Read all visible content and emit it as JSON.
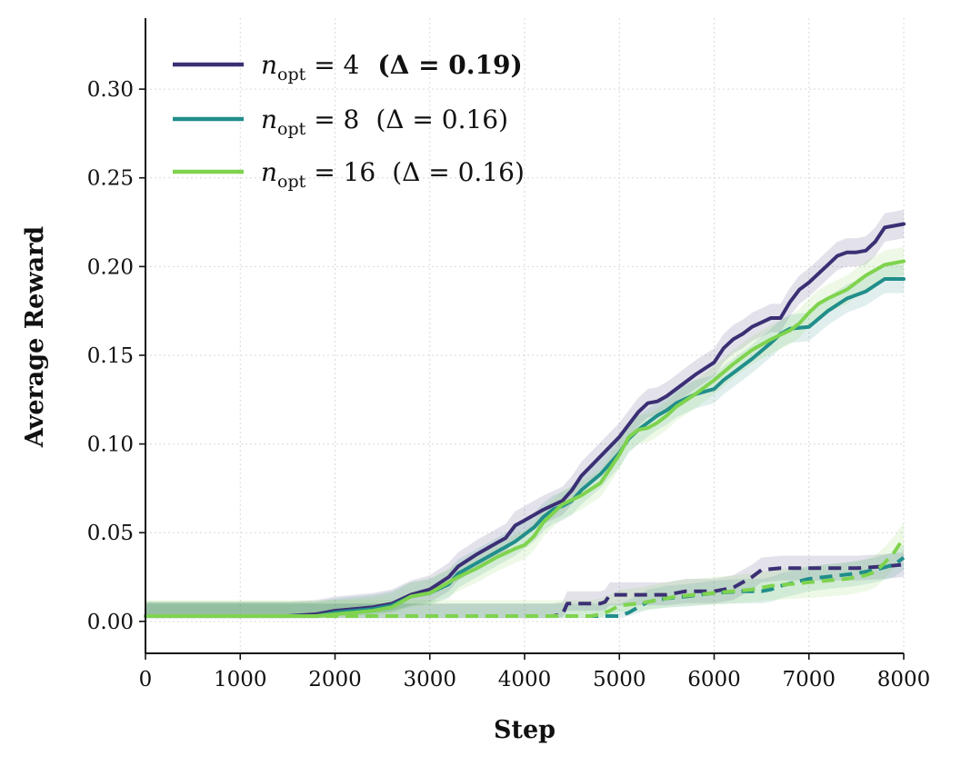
{
  "chart_data": {
    "type": "line",
    "title": "",
    "xlabel": "Step",
    "ylabel": "Average Reward",
    "xlim": [
      0,
      8000
    ],
    "ylim": [
      -0.018,
      0.34
    ],
    "x_ticks": [
      0,
      1000,
      2000,
      3000,
      4000,
      5000,
      6000,
      7000,
      8000
    ],
    "x_tick_labels": [
      "0",
      "1000",
      "2000",
      "3000",
      "4000",
      "5000",
      "6000",
      "7000",
      "8000"
    ],
    "y_ticks": [
      0.0,
      0.05,
      0.1,
      0.15,
      0.2,
      0.25,
      0.3
    ],
    "y_tick_labels": [
      "0.00",
      "0.05",
      "0.10",
      "0.15",
      "0.20",
      "0.25",
      "0.30"
    ],
    "grid": true,
    "legend_position": "top-left",
    "series": [
      {
        "name": "n_opt = 4 (Δ = 0.19)",
        "legend": {
          "var": "n",
          "sub": "opt",
          "eq": " = 4",
          "delta": "(Δ = 0.19)",
          "delta_bold": true
        },
        "color": "#3b2f74",
        "solid": {
          "x": [
            0,
            500,
            1000,
            1500,
            1800,
            2000,
            2200,
            2400,
            2600,
            2800,
            3000,
            3200,
            3300,
            3500,
            3700,
            3800,
            3900,
            4000,
            4200,
            4400,
            4500,
            4600,
            4800,
            5000,
            5100,
            5200,
            5300,
            5400,
            5500,
            5600,
            5800,
            6000,
            6100,
            6200,
            6300,
            6400,
            6600,
            6700,
            6800,
            6900,
            7000,
            7200,
            7300,
            7400,
            7500,
            7600,
            7700,
            7800,
            8000
          ],
          "y": [
            0.003,
            0.003,
            0.003,
            0.003,
            0.004,
            0.006,
            0.007,
            0.008,
            0.01,
            0.015,
            0.018,
            0.025,
            0.031,
            0.038,
            0.044,
            0.047,
            0.054,
            0.057,
            0.063,
            0.068,
            0.074,
            0.082,
            0.093,
            0.104,
            0.111,
            0.118,
            0.123,
            0.124,
            0.127,
            0.131,
            0.139,
            0.146,
            0.154,
            0.159,
            0.162,
            0.166,
            0.171,
            0.171,
            0.18,
            0.187,
            0.191,
            0.201,
            0.206,
            0.208,
            0.208,
            0.209,
            0.214,
            0.222,
            0.224
          ],
          "band": 0.008
        },
        "dashed": {
          "x": [
            0,
            1000,
            2000,
            3000,
            4000,
            4300,
            4400,
            4450,
            4500,
            4800,
            4850,
            4900,
            5000,
            5300,
            5500,
            5700,
            6000,
            6200,
            6300,
            6400,
            6500,
            6700,
            7000,
            7500,
            7800,
            8000
          ],
          "y": [
            0.003,
            0.003,
            0.003,
            0.003,
            0.003,
            0.003,
            0.004,
            0.01,
            0.01,
            0.01,
            0.011,
            0.015,
            0.015,
            0.015,
            0.015,
            0.017,
            0.017,
            0.019,
            0.022,
            0.025,
            0.029,
            0.03,
            0.03,
            0.03,
            0.031,
            0.032
          ],
          "band": 0.007
        }
      },
      {
        "name": "n_opt = 8 (Δ = 0.16)",
        "legend": {
          "var": "n",
          "sub": "opt",
          "eq": " = 8",
          "delta": "(Δ = 0.16)",
          "delta_bold": false
        },
        "color": "#218e8a",
        "solid": {
          "x": [
            0,
            500,
            1000,
            1500,
            1800,
            2000,
            2200,
            2400,
            2600,
            2800,
            3000,
            3200,
            3300,
            3500,
            3700,
            3900,
            4000,
            4100,
            4200,
            4300,
            4400,
            4500,
            4600,
            4800,
            5000,
            5100,
            5200,
            5300,
            5400,
            5500,
            5600,
            5800,
            6000,
            6100,
            6200,
            6400,
            6600,
            6700,
            6800,
            7000,
            7200,
            7400,
            7600,
            7800,
            8000
          ],
          "y": [
            0.003,
            0.003,
            0.003,
            0.003,
            0.003,
            0.005,
            0.006,
            0.007,
            0.009,
            0.014,
            0.016,
            0.021,
            0.027,
            0.033,
            0.039,
            0.045,
            0.049,
            0.053,
            0.059,
            0.063,
            0.065,
            0.068,
            0.074,
            0.083,
            0.095,
            0.103,
            0.108,
            0.112,
            0.116,
            0.119,
            0.123,
            0.128,
            0.131,
            0.136,
            0.14,
            0.148,
            0.157,
            0.162,
            0.165,
            0.166,
            0.175,
            0.182,
            0.186,
            0.193,
            0.193
          ],
          "band": 0.008
        },
        "dashed": {
          "x": [
            0,
            1000,
            2000,
            3000,
            4000,
            4900,
            5000,
            5100,
            5200,
            5300,
            5500,
            5700,
            6000,
            6300,
            6500,
            6600,
            6700,
            7000,
            7500,
            7700,
            7900,
            8000
          ],
          "y": [
            0.003,
            0.003,
            0.003,
            0.003,
            0.003,
            0.003,
            0.003,
            0.005,
            0.008,
            0.011,
            0.013,
            0.014,
            0.016,
            0.017,
            0.017,
            0.018,
            0.02,
            0.024,
            0.027,
            0.029,
            0.032,
            0.036
          ],
          "band": 0.007
        }
      },
      {
        "name": "n_opt = 16 (Δ = 0.16)",
        "legend": {
          "var": "n",
          "sub": "opt",
          "eq": " = 16",
          "delta": "(Δ = 0.16)",
          "delta_bold": false
        },
        "color": "#7fd34e",
        "solid": {
          "x": [
            0,
            500,
            1000,
            1500,
            1800,
            2000,
            2200,
            2400,
            2600,
            2800,
            3000,
            3200,
            3300,
            3500,
            3700,
            3900,
            4000,
            4100,
            4200,
            4400,
            4600,
            4800,
            5000,
            5100,
            5200,
            5300,
            5400,
            5500,
            5600,
            5800,
            6000,
            6200,
            6400,
            6600,
            6800,
            6900,
            7000,
            7100,
            7200,
            7400,
            7600,
            7800,
            8000
          ],
          "y": [
            0.003,
            0.003,
            0.003,
            0.003,
            0.003,
            0.004,
            0.005,
            0.006,
            0.008,
            0.014,
            0.016,
            0.022,
            0.025,
            0.03,
            0.036,
            0.041,
            0.043,
            0.048,
            0.056,
            0.066,
            0.071,
            0.078,
            0.094,
            0.104,
            0.108,
            0.109,
            0.112,
            0.116,
            0.121,
            0.128,
            0.136,
            0.145,
            0.153,
            0.159,
            0.164,
            0.168,
            0.174,
            0.179,
            0.182,
            0.187,
            0.195,
            0.201,
            0.203
          ],
          "band": 0.008
        },
        "dashed": {
          "x": [
            0,
            1000,
            2000,
            3000,
            4000,
            4700,
            4800,
            4900,
            5000,
            5200,
            5400,
            5600,
            6000,
            6400,
            6600,
            6800,
            7000,
            7200,
            7400,
            7600,
            7700,
            7800,
            7900,
            8000
          ],
          "y": [
            0.003,
            0.003,
            0.003,
            0.003,
            0.003,
            0.003,
            0.004,
            0.006,
            0.009,
            0.01,
            0.012,
            0.014,
            0.016,
            0.018,
            0.02,
            0.021,
            0.022,
            0.023,
            0.024,
            0.026,
            0.028,
            0.033,
            0.039,
            0.047
          ],
          "band": 0.009
        }
      }
    ]
  }
}
